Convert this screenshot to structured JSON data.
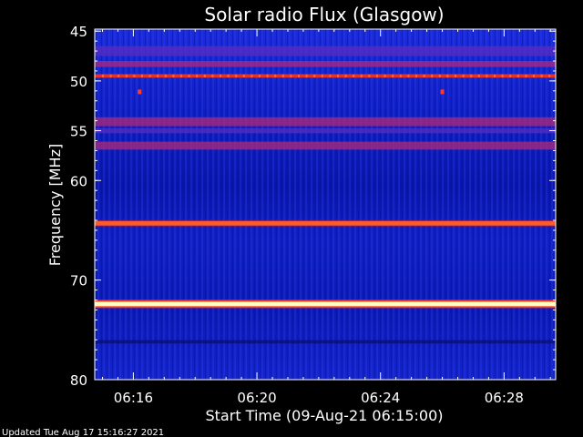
{
  "chart_data": {
    "type": "heatmap",
    "title": "Solar radio Flux (Glasgow)",
    "xlabel": "Start Time (09-Aug-21 06:15:00)",
    "ylabel": "Frequency [MHz]",
    "x_ticks": [
      "06:16",
      "06:20",
      "06:24",
      "06:28"
    ],
    "x_tick_minutes": [
      16,
      20,
      24,
      28
    ],
    "x_range_minutes": [
      14.75,
      29.67
    ],
    "y_ticks": [
      45,
      50,
      55,
      60,
      70,
      80
    ],
    "y_tick_labels": [
      "45",
      "50",
      "55",
      "60",
      "70",
      "80"
    ],
    "y_range": [
      44.8,
      80
    ],
    "colormap": "blue-red-yellow",
    "bands": [
      {
        "freq": 47.0,
        "width": 1.0,
        "level": 0.33
      },
      {
        "freq": 48.3,
        "width": 0.6,
        "level": 0.45
      },
      {
        "freq": 49.5,
        "width": 0.35,
        "level": 0.62
      },
      {
        "freq": 54.1,
        "width": 0.9,
        "level": 0.5
      },
      {
        "freq": 55.0,
        "width": 0.5,
        "level": 0.4
      },
      {
        "freq": 56.5,
        "width": 0.8,
        "level": 0.45
      },
      {
        "freq": 64.3,
        "width": 0.45,
        "level": 0.82
      },
      {
        "freq": 72.4,
        "width": 0.45,
        "level": 0.98
      },
      {
        "freq": 76.2,
        "width": 0.35,
        "level": 0.22
      }
    ],
    "spots": [
      {
        "minute": 16.2,
        "freq": 51.1
      },
      {
        "minute": 26.0,
        "freq": 51.1
      }
    ]
  },
  "footer": {
    "updated": "Updated Tue Aug 17 15:16:27 2021"
  }
}
